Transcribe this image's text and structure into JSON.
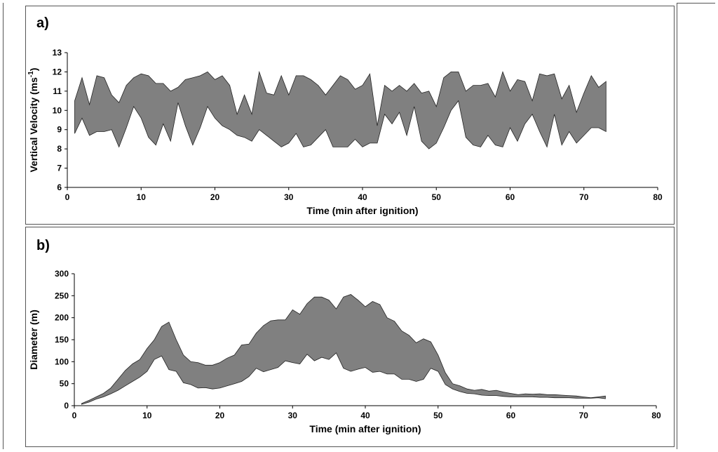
{
  "chart_data": [
    {
      "panel_label": "a)",
      "type": "area",
      "title": "",
      "xlabel": "Time (min after ignition)",
      "ylabel_main": "Vertical Velocity (ms",
      "ylabel_sup": "-1",
      "ylabel_close": ")",
      "xlim": [
        0,
        80
      ],
      "ylim": [
        6,
        13
      ],
      "xticks": [
        0,
        10,
        20,
        30,
        40,
        50,
        60,
        70,
        80
      ],
      "yticks": [
        6,
        7,
        8,
        9,
        10,
        11,
        12,
        13
      ],
      "fill_color": "#808080",
      "series": [
        {
          "x": [
            1,
            2,
            3,
            4,
            5,
            6,
            7,
            8,
            9,
            10,
            11,
            12,
            13,
            14,
            15,
            16,
            17,
            18,
            19,
            20,
            21,
            22,
            23,
            24,
            25,
            26,
            27,
            28,
            29,
            30,
            31,
            32,
            33,
            34,
            35,
            36,
            37,
            38,
            39,
            40,
            41,
            42,
            43,
            44,
            45,
            46,
            47,
            48,
            49,
            50,
            51,
            52,
            53,
            54,
            55,
            56,
            57,
            58,
            59,
            60,
            61,
            62,
            63,
            64,
            65,
            66,
            67,
            68,
            69,
            70,
            71,
            72,
            73
          ],
          "upper": [
            10.5,
            11.7,
            10.3,
            11.8,
            11.7,
            10.8,
            10.4,
            11.3,
            11.7,
            11.9,
            11.8,
            11.4,
            11.4,
            11.0,
            11.2,
            11.6,
            11.7,
            11.8,
            12.0,
            11.6,
            11.8,
            11.3,
            9.8,
            10.8,
            9.8,
            12.0,
            10.9,
            10.8,
            11.8,
            10.8,
            11.8,
            11.8,
            11.6,
            11.3,
            10.8,
            11.3,
            11.8,
            11.6,
            11.1,
            11.3,
            11.9,
            9.2,
            11.3,
            11.0,
            11.3,
            11.0,
            11.4,
            10.9,
            11.0,
            10.2,
            11.7,
            12.0,
            12.0,
            11.0,
            11.3,
            11.3,
            11.4,
            10.7,
            12.0,
            11.0,
            11.6,
            11.5,
            10.5,
            11.9,
            11.8,
            11.9,
            10.6,
            11.3,
            9.9,
            10.9,
            11.8,
            11.2,
            11.5
          ],
          "lower": [
            8.8,
            9.6,
            8.7,
            8.9,
            8.9,
            9.0,
            8.1,
            9.1,
            10.2,
            9.6,
            8.6,
            8.2,
            9.3,
            8.4,
            10.4,
            9.2,
            8.2,
            9.1,
            10.2,
            9.6,
            9.2,
            9.0,
            8.7,
            8.6,
            8.4,
            9.0,
            8.7,
            8.4,
            8.1,
            8.3,
            8.8,
            8.1,
            8.2,
            8.6,
            9.0,
            8.1,
            8.1,
            8.1,
            8.5,
            8.1,
            8.3,
            8.3,
            9.8,
            9.3,
            9.9,
            8.7,
            10.2,
            8.4,
            8.0,
            8.3,
            9.1,
            10.0,
            10.5,
            8.6,
            8.2,
            8.1,
            8.7,
            8.2,
            8.1,
            9.1,
            8.4,
            9.3,
            9.8,
            8.9,
            8.1,
            9.8,
            8.2,
            8.9,
            8.3,
            8.7,
            9.1,
            9.1,
            8.9
          ]
        }
      ]
    },
    {
      "panel_label": "b)",
      "type": "area",
      "title": "",
      "xlabel": "Time (min after ignition)",
      "ylabel": "Diameter (m)",
      "xlim": [
        0,
        80
      ],
      "ylim": [
        0,
        300
      ],
      "xticks": [
        0,
        10,
        20,
        30,
        40,
        50,
        60,
        70,
        80
      ],
      "yticks": [
        0,
        50,
        100,
        150,
        200,
        250,
        300
      ],
      "fill_color": "#808080",
      "series": [
        {
          "x": [
            1,
            2,
            3,
            4,
            5,
            6,
            7,
            8,
            9,
            10,
            11,
            12,
            13,
            14,
            15,
            16,
            17,
            18,
            19,
            20,
            21,
            22,
            23,
            24,
            25,
            26,
            27,
            28,
            29,
            30,
            31,
            32,
            33,
            34,
            35,
            36,
            37,
            38,
            39,
            40,
            41,
            42,
            43,
            44,
            45,
            46,
            47,
            48,
            49,
            50,
            51,
            52,
            53,
            54,
            55,
            56,
            57,
            58,
            59,
            60,
            61,
            62,
            63,
            64,
            65,
            66,
            67,
            68,
            69,
            70,
            71,
            72,
            73
          ],
          "upper": [
            5,
            12,
            20,
            28,
            40,
            60,
            80,
            95,
            105,
            130,
            150,
            180,
            190,
            150,
            115,
            100,
            98,
            92,
            92,
            98,
            108,
            115,
            138,
            140,
            165,
            182,
            193,
            195,
            195,
            218,
            208,
            232,
            247,
            247,
            240,
            220,
            247,
            253,
            240,
            225,
            237,
            230,
            200,
            192,
            170,
            160,
            143,
            152,
            145,
            115,
            75,
            50,
            45,
            38,
            35,
            37,
            33,
            35,
            31,
            28,
            25,
            27,
            26,
            27,
            25,
            25,
            24,
            23,
            22,
            20,
            18,
            20,
            22
          ],
          "lower": [
            3,
            8,
            15,
            20,
            27,
            35,
            45,
            55,
            65,
            78,
            105,
            113,
            82,
            78,
            52,
            48,
            40,
            41,
            38,
            40,
            45,
            50,
            55,
            66,
            85,
            77,
            82,
            87,
            102,
            98,
            95,
            117,
            102,
            110,
            105,
            120,
            85,
            78,
            83,
            87,
            76,
            78,
            72,
            72,
            60,
            60,
            55,
            60,
            85,
            78,
            48,
            38,
            32,
            28,
            27,
            24,
            23,
            23,
            21,
            20,
            20,
            20,
            20,
            19,
            19,
            18,
            18,
            18,
            17,
            17,
            17,
            18,
            16
          ]
        }
      ]
    }
  ]
}
